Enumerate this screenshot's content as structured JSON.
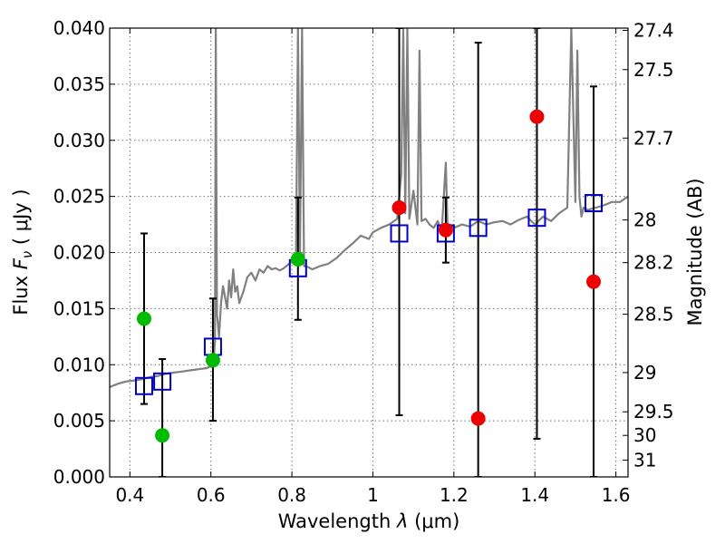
{
  "chart_data": {
    "type": "scatter",
    "xlabel": "Wavelength  λ (μm)",
    "ylabel": "Flux  F_ν  ( μJy )",
    "ylabel_parts": [
      "Flux  ",
      "F",
      "ν",
      "  ( μJy )"
    ],
    "xlabel_parts": [
      "Wavelength  ",
      "λ",
      " (μm)"
    ],
    "y2label": "Magnitude (AB)",
    "xlim": [
      0.35,
      1.63
    ],
    "ylim": [
      0.0,
      0.04
    ],
    "grid": true,
    "x_ticks": [
      0.4,
      0.6,
      0.8,
      1.0,
      1.2,
      1.4,
      1.6
    ],
    "x_tick_labels": [
      "0.4",
      "0.6",
      "0.8",
      "1",
      "1.2",
      "1.4",
      "1.6"
    ],
    "y_ticks": [
      0.0,
      0.005,
      0.01,
      0.015,
      0.02,
      0.025,
      0.03,
      0.035,
      0.04
    ],
    "y_tick_labels": [
      "0.000",
      "0.005",
      "0.010",
      "0.015",
      "0.020",
      "0.025",
      "0.030",
      "0.035",
      "0.040"
    ],
    "y2_ticks": [
      {
        "label": "27.4",
        "flux": 0.0398
      },
      {
        "label": "27.5",
        "flux": 0.0363
      },
      {
        "label": "27.7",
        "flux": 0.0302
      },
      {
        "label": "28",
        "flux": 0.0229
      },
      {
        "label": "28.2",
        "flux": 0.0191
      },
      {
        "label": "28.5",
        "flux": 0.0145
      },
      {
        "label": "29",
        "flux": 0.0093
      },
      {
        "label": "29.5",
        "flux": 0.0058
      },
      {
        "label": "30",
        "flux": 0.0037
      },
      {
        "label": "31",
        "flux": 0.0015
      }
    ],
    "series": [
      {
        "name": "model spectrum",
        "kind": "line",
        "color": "#808080",
        "x": [
          0.35,
          0.37,
          0.39,
          0.41,
          0.43,
          0.45,
          0.47,
          0.49,
          0.51,
          0.53,
          0.55,
          0.57,
          0.59,
          0.6,
          0.605,
          0.61,
          0.612,
          0.615,
          0.62,
          0.625,
          0.63,
          0.64,
          0.645,
          0.65,
          0.655,
          0.66,
          0.665,
          0.67,
          0.68,
          0.69,
          0.7,
          0.71,
          0.72,
          0.73,
          0.74,
          0.75,
          0.76,
          0.77,
          0.78,
          0.79,
          0.8,
          0.81,
          0.815,
          0.82,
          0.825,
          0.83,
          0.84,
          0.85,
          0.87,
          0.89,
          0.91,
          0.93,
          0.95,
          0.97,
          0.99,
          1.0,
          1.02,
          1.04,
          1.06,
          1.07,
          1.075,
          1.08,
          1.085,
          1.09,
          1.1,
          1.11,
          1.115,
          1.12,
          1.13,
          1.14,
          1.15,
          1.16,
          1.17,
          1.18,
          1.185,
          1.19,
          1.2,
          1.22,
          1.24,
          1.26,
          1.28,
          1.3,
          1.32,
          1.34,
          1.36,
          1.38,
          1.4,
          1.42,
          1.44,
          1.46,
          1.48,
          1.49,
          1.5,
          1.505,
          1.51,
          1.515,
          1.52,
          1.53,
          1.55,
          1.57,
          1.59,
          1.61,
          1.63
        ],
        "y": [
          0.008,
          0.0083,
          0.0085,
          0.0086,
          0.0087,
          0.0089,
          0.009,
          0.0092,
          0.0093,
          0.0094,
          0.0095,
          0.0096,
          0.0097,
          0.0099,
          0.0098,
          0.012,
          0.04,
          0.0145,
          0.0125,
          0.0155,
          0.017,
          0.015,
          0.0175,
          0.016,
          0.0185,
          0.0165,
          0.017,
          0.0155,
          0.0165,
          0.0178,
          0.0182,
          0.0175,
          0.0185,
          0.0182,
          0.0188,
          0.0185,
          0.0186,
          0.0184,
          0.0186,
          0.0189,
          0.0192,
          0.0195,
          0.04,
          0.0198,
          0.04,
          0.0188,
          0.0187,
          0.0185,
          0.0188,
          0.019,
          0.0195,
          0.0202,
          0.0208,
          0.0215,
          0.0212,
          0.0218,
          0.0222,
          0.0225,
          0.023,
          0.027,
          0.04,
          0.0235,
          0.04,
          0.023,
          0.0255,
          0.0225,
          0.038,
          0.0228,
          0.023,
          0.0225,
          0.0222,
          0.0228,
          0.0218,
          0.028,
          0.0215,
          0.0225,
          0.0222,
          0.0225,
          0.0223,
          0.0228,
          0.0225,
          0.0227,
          0.0228,
          0.0225,
          0.0229,
          0.0232,
          0.0225,
          0.0232,
          0.0228,
          0.0235,
          0.024,
          0.04,
          0.0245,
          0.038,
          0.025,
          0.0232,
          0.024,
          0.0238,
          0.024,
          0.0242,
          0.0245,
          0.0245,
          0.025
        ]
      },
      {
        "name": "model photometry",
        "kind": "open_square",
        "color": "#0000cc",
        "x": [
          0.435,
          0.48,
          0.605,
          0.815,
          1.065,
          1.18,
          1.26,
          1.405,
          1.545
        ],
        "y": [
          0.0081,
          0.0085,
          0.0116,
          0.0186,
          0.0217,
          0.0217,
          0.0222,
          0.0231,
          0.0244
        ]
      },
      {
        "name": "observed (green)",
        "kind": "point",
        "color": "#00bb00",
        "x": [
          0.435,
          0.48,
          0.605,
          0.815
        ],
        "y": [
          0.0141,
          0.0037,
          0.0104,
          0.0194
        ]
      },
      {
        "name": "observed (red)",
        "kind": "point",
        "color": "#ee0000",
        "x": [
          1.065,
          1.18,
          1.26,
          1.405,
          1.545
        ],
        "y": [
          0.024,
          0.022,
          0.0052,
          0.0321,
          0.0174
        ]
      }
    ],
    "error_bars": [
      {
        "x": 0.435,
        "low": 0.0065,
        "high": 0.0217
      },
      {
        "x": 0.48,
        "low": 0.0,
        "high": 0.0105
      },
      {
        "x": 0.605,
        "low": 0.005,
        "high": 0.0159
      },
      {
        "x": 0.815,
        "low": 0.014,
        "high": 0.0249
      },
      {
        "x": 1.065,
        "low": 0.0055,
        "high": 0.04
      },
      {
        "x": 1.18,
        "low": 0.0191,
        "high": 0.0249
      },
      {
        "x": 1.26,
        "low": 0.0,
        "high": 0.0387
      },
      {
        "x": 1.405,
        "low": 0.0034,
        "high": 0.04
      },
      {
        "x": 1.545,
        "low": 0.0,
        "high": 0.0348
      }
    ]
  }
}
